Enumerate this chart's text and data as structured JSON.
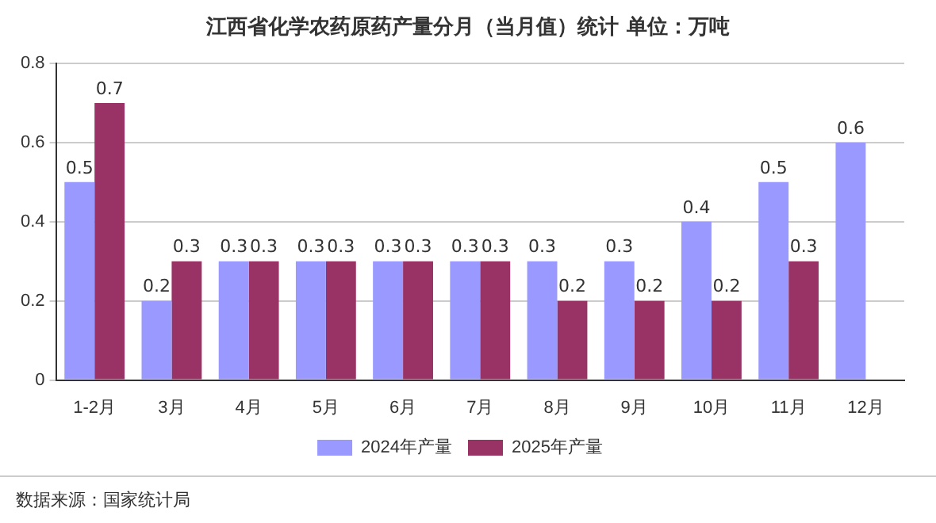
{
  "chart_data": {
    "type": "bar",
    "title": "江西省化学农药原药产量分月（当月值）统计  单位：万吨",
    "categories": [
      "1-2月",
      "3月",
      "4月",
      "5月",
      "6月",
      "7月",
      "8月",
      "9月",
      "10月",
      "11月",
      "12月"
    ],
    "series": [
      {
        "name": "2024年产量",
        "color": "#9999ff",
        "values": [
          0.5,
          0.2,
          0.3,
          0.3,
          0.3,
          0.3,
          0.3,
          0.3,
          0.4,
          0.5,
          0.6
        ]
      },
      {
        "name": "2025年产量",
        "color": "#993366",
        "values": [
          0.7,
          0.3,
          0.3,
          0.3,
          0.3,
          0.3,
          0.2,
          0.2,
          0.2,
          0.3,
          null
        ]
      }
    ],
    "ylim": [
      0,
      0.8
    ],
    "yticks": [
      0,
      0.2,
      0.4,
      0.6,
      0.8
    ],
    "grid": "y",
    "legend": "bottom",
    "data_labels": true,
    "annotations": [
      "数据来源：国家统计局"
    ]
  }
}
